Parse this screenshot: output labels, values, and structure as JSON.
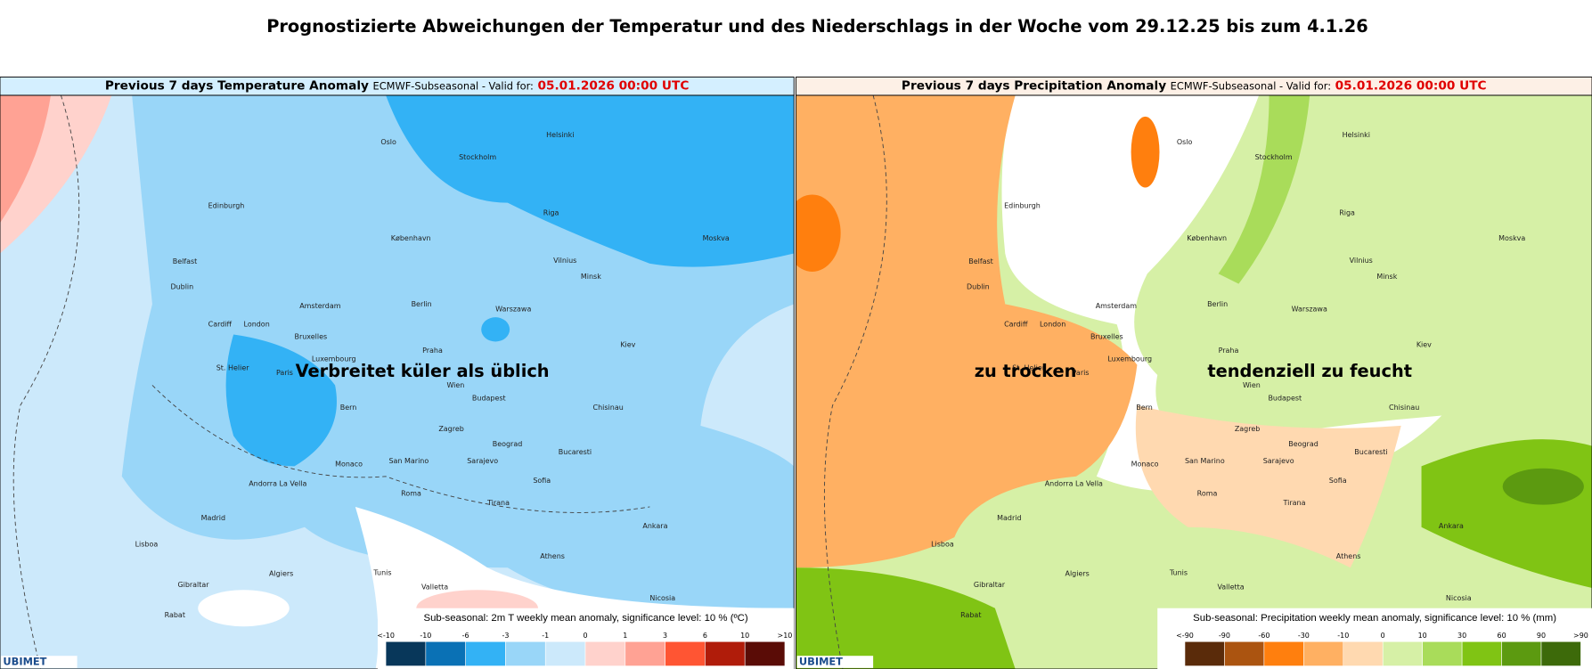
{
  "title": "Prognostizierte Abweichungen der Temperatur und des Niederschlags in der Woche vom 29.12.25 bis zum 4.1.26",
  "panels": [
    {
      "header": {
        "name": "Previous 7 days Temperature Anomaly",
        "source": "ECMWF-Subseasonal - Valid for:",
        "valid": "05.01.2026 00:00 UTC"
      },
      "legend": {
        "title": "Sub-seasonal: 2m T weekly mean anomaly, significance level: 10 % (ºC)",
        "labels": [
          "<-10",
          "-10",
          "-6",
          "-3",
          "-1",
          "0",
          "1",
          "3",
          "6",
          "10",
          ">10"
        ],
        "colors": [
          "#08375a",
          "#0a71b5",
          "#33b2f5",
          "#99d6f8",
          "#cce9fb",
          "#ffd2cc",
          "#ffa294",
          "#ff5533",
          "#b01c0a",
          "#5a0c06"
        ]
      }
    },
    {
      "header": {
        "name": "Previous 7 days Precipitation Anomaly",
        "source": "ECMWF-Subseasonal - Valid for:",
        "valid": "05.01.2026 00:00 UTC"
      },
      "legend": {
        "title": "Sub-seasonal: Precipitation weekly mean anomaly, significance level: 10 % (mm)",
        "labels": [
          "<-90",
          "-90",
          "-60",
          "-30",
          "-10",
          "0",
          "10",
          "30",
          "60",
          "90",
          ">90"
        ],
        "colors": [
          "#5a2b0a",
          "#ab5410",
          "#ff7f0e",
          "#ffb062",
          "#ffd9b0",
          "#d6f0a6",
          "#a9dc5a",
          "#80c414",
          "#5c9a10",
          "#3d6a0a"
        ]
      }
    }
  ],
  "annotations": [
    "Verbreitet küler als üblich",
    "zu trocken",
    "tendenziell zu feucht"
  ],
  "cities": [
    "Oslo",
    "Stockholm",
    "Helsinki",
    "Edinburgh",
    "Riga",
    "Moskva",
    "København",
    "Vilnius",
    "Minsk",
    "Belfast",
    "Dublin",
    "Amsterdam",
    "Berlin",
    "Warszawa",
    "Cardiff",
    "London",
    "Bruxelles",
    "St. Helier",
    "Luxembourg",
    "Paris",
    "Praha",
    "Kiev",
    "Wien",
    "Bern",
    "Budapest",
    "Chisinau",
    "Zagreb",
    "Beograd",
    "Bucaresti",
    "Monaco",
    "San Marino",
    "Sarajevo",
    "Sofia",
    "Andorra La Vella",
    "Roma",
    "Tirana",
    "Madrid",
    "Ankara",
    "Lisboa",
    "Algiers",
    "Tunis",
    "Valletta",
    "Gibraltar",
    "Rabat",
    "Nicosia",
    "Athens"
  ],
  "logo": "UBIMET"
}
